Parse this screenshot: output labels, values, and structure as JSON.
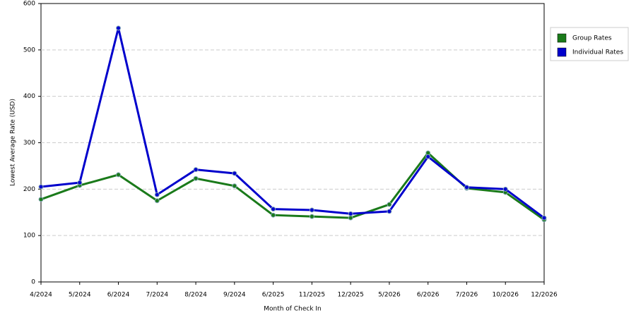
{
  "chart_data": {
    "type": "line",
    "x_label": "Month of Check In",
    "y_label": "Lowest Average Rate (USD)",
    "categories": [
      "4/2024",
      "5/2024",
      "6/2024",
      "7/2024",
      "8/2024",
      "9/2024",
      "6/2025",
      "11/2025",
      "12/2025",
      "5/2026",
      "6/2026",
      "7/2026",
      "10/2026",
      "12/2026"
    ],
    "series": [
      {
        "name": "Group Rates",
        "color": "#1a7a1a",
        "values": [
          178,
          208,
          231,
          175,
          223,
          207,
          144,
          141,
          138,
          167,
          278,
          202,
          193,
          134
        ]
      },
      {
        "name": "Individual Rates",
        "color": "#0000cc",
        "values": [
          205,
          214,
          547,
          188,
          242,
          234,
          157,
          155,
          147,
          152,
          270,
          204,
          200,
          138
        ]
      }
    ],
    "ylim": [
      0,
      600
    ],
    "yticks": [
      0,
      100,
      200,
      300,
      400,
      500,
      600
    ],
    "grid": true,
    "legend": "right"
  }
}
